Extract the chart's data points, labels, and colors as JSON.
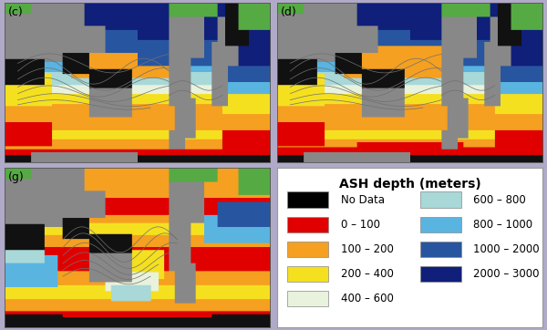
{
  "background_color": "#b0aac8",
  "panel_labels": [
    "(c)",
    "(d)",
    "(g)"
  ],
  "legend_title": "ASH depth (meters)",
  "legend_items_left": [
    {
      "label": "No Data",
      "color": "#000000"
    },
    {
      "label": "0 – 100",
      "color": "#e00000"
    },
    {
      "label": "100 – 200",
      "color": "#f5a020"
    },
    {
      "label": "200 – 400",
      "color": "#f5e020"
    },
    {
      "label": "400 – 600",
      "color": "#e8f2dc"
    }
  ],
  "legend_items_right": [
    {
      "label": "600 – 800",
      "color": "#a8d8d8"
    },
    {
      "label": "800 – 1000",
      "color": "#5ab4e0"
    },
    {
      "label": "1000 – 2000",
      "color": "#2855a0"
    },
    {
      "label": "2000 – 3000",
      "color": "#0f1f7a"
    }
  ],
  "land_color": "#888888",
  "nodata_color": "#111111",
  "green_color": "#55aa44",
  "contour_color": "#707070",
  "panel_label_fontsize": 9,
  "legend_title_fontsize": 10,
  "legend_item_fontsize": 8.5
}
